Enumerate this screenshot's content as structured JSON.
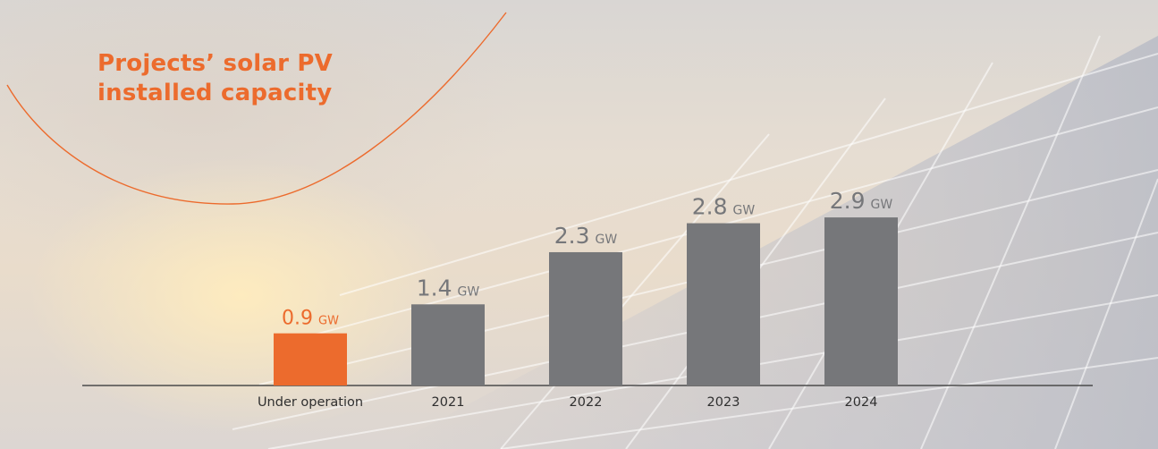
{
  "colors": {
    "accent": "#ec6b2d",
    "bar": "#76777a",
    "axis": "#4b4b4b",
    "label": "#2f2f2f"
  },
  "title_lines": [
    "Projects’ solar PV",
    "installed capacity"
  ],
  "chart_data": {
    "type": "bar",
    "title": "Projects’ solar PV installed capacity",
    "categories": [
      "Under operation",
      "2021",
      "2022",
      "2023",
      "2024"
    ],
    "values": [
      0.9,
      1.4,
      2.3,
      2.8,
      2.9
    ],
    "value_labels": [
      "0.9",
      "1.4",
      "2.3",
      "2.8",
      "2.9"
    ],
    "unit": "GW",
    "highlight_index": 0,
    "ylim": [
      0,
      3.2
    ],
    "grid": false,
    "legend": "none"
  }
}
